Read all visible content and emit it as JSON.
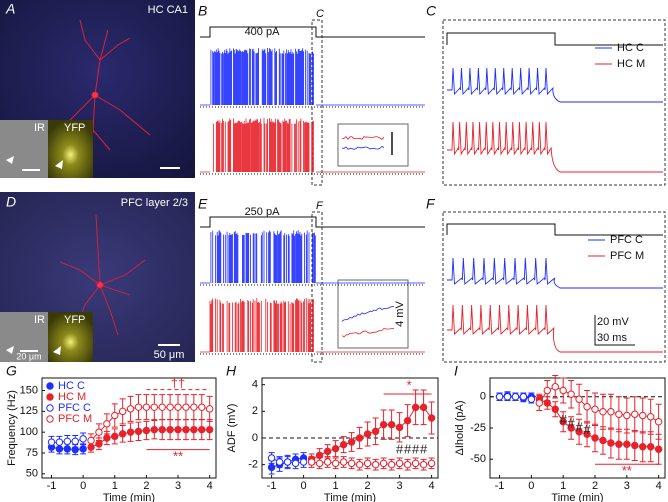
{
  "panels": {
    "A": {
      "label": "A",
      "title": "HC CA1",
      "insets": [
        "IR",
        "YFP"
      ]
    },
    "B": {
      "label": "B",
      "current": "400 pA",
      "box": "C"
    },
    "C": {
      "label": "C",
      "legend": [
        "HC C",
        "HC M"
      ]
    },
    "D": {
      "label": "D",
      "title": "PFC layer 2/3",
      "insets": [
        "IR",
        "YFP"
      ],
      "inset_scale": "20 μm",
      "scale": "50 μm"
    },
    "E": {
      "label": "E",
      "current": "250 pA",
      "box": "F",
      "scale": "4 mV"
    },
    "F": {
      "label": "F",
      "legend": [
        "PFC C",
        "PFC M"
      ],
      "scale_v": "20 mV",
      "scale_t": "30 ms"
    }
  },
  "chart_data": [
    {
      "type": "scatter",
      "label": "G",
      "ylabel": "Frequency (Hz)",
      "xlabel": "Time (min)",
      "xlim": [
        -1.3,
        4.2
      ],
      "xticks": [
        -1,
        0,
        1,
        2,
        3,
        4
      ],
      "ylim": [
        45,
        165
      ],
      "yticks": [
        50,
        75,
        100,
        125,
        150
      ],
      "legend": "upper left",
      "series": [
        {
          "name": "HC C",
          "color": "#1f2eff",
          "marker": "filled",
          "x": [
            -1,
            -0.75,
            -0.5,
            -0.25,
            0
          ],
          "values": [
            82,
            80,
            80,
            79,
            80
          ],
          "errors": [
            6,
            6,
            6,
            6,
            6
          ]
        },
        {
          "name": "HC M",
          "color": "#e8212b",
          "marker": "filled",
          "x": [
            0.25,
            0.5,
            0.75,
            1,
            1.25,
            1.5,
            1.75,
            2,
            2.25,
            2.5,
            2.75,
            3,
            3.25,
            3.5,
            3.75,
            4
          ],
          "values": [
            82,
            86,
            93,
            95,
            98,
            100,
            101,
            102,
            103,
            103,
            103,
            103,
            103,
            103,
            103,
            103
          ],
          "errors": [
            6,
            7,
            8,
            9,
            10,
            11,
            11,
            11,
            11,
            12,
            12,
            12,
            12,
            12,
            12,
            12
          ]
        },
        {
          "name": "PFC C",
          "color": "#1f2eff",
          "marker": "open",
          "x": [
            -1,
            -0.75,
            -0.5,
            -0.25,
            0
          ],
          "values": [
            88,
            88,
            89,
            89,
            92
          ],
          "errors": [
            7,
            7,
            7,
            7,
            7
          ]
        },
        {
          "name": "PFC M",
          "color": "#e8212b",
          "marker": "open",
          "x": [
            0.25,
            0.5,
            0.75,
            1,
            1.25,
            1.5,
            1.75,
            2,
            2.25,
            2.5,
            2.75,
            3,
            3.25,
            3.5,
            3.75,
            4
          ],
          "values": [
            90,
            100,
            110,
            120,
            125,
            128,
            130,
            130,
            130,
            130,
            130,
            130,
            130,
            130,
            130,
            128
          ],
          "errors": [
            8,
            10,
            12,
            14,
            15,
            15,
            15,
            15,
            15,
            15,
            15,
            15,
            15,
            15,
            15,
            15
          ]
        }
      ],
      "annotations": [
        {
          "text": "††",
          "color": "#e8212b"
        },
        {
          "text": "**",
          "color": "#e8212b"
        }
      ]
    },
    {
      "type": "scatter",
      "label": "H",
      "ylabel": "ADF (mV)",
      "xlabel": "Time (min)",
      "xlim": [
        -1.3,
        4.2
      ],
      "xticks": [
        -1,
        0,
        1,
        2,
        3,
        4
      ],
      "ylim": [
        -3,
        4.5
      ],
      "yticks": [
        -2,
        0,
        2,
        4
      ],
      "zero_line": true,
      "series": [
        {
          "color": "#1f2eff",
          "marker": "filled",
          "x": [
            -1,
            -0.75,
            -0.5,
            -0.25,
            0
          ],
          "values": [
            -2.2,
            -2,
            -1.8,
            -1.6,
            -1.5
          ],
          "errors": [
            0.5,
            0.5,
            0.5,
            0.4,
            0.4
          ]
        },
        {
          "color": "#e8212b",
          "marker": "filled",
          "x": [
            0.25,
            0.5,
            0.75,
            1,
            1.25,
            1.5,
            1.75,
            2,
            2.25,
            2.5,
            2.75,
            3,
            3.25,
            3.5,
            3.75,
            4
          ],
          "values": [
            -1.6,
            -1.3,
            -1,
            -0.8,
            -0.5,
            -0.3,
            0,
            0.3,
            0.5,
            1,
            1,
            0.8,
            1.3,
            2.3,
            2.3,
            1.5
          ],
          "errors": [
            0.4,
            0.5,
            0.5,
            0.6,
            0.6,
            0.7,
            0.8,
            0.9,
            1,
            1.1,
            1.1,
            1.1,
            1.2,
            1.3,
            1.3,
            1.2
          ]
        },
        {
          "color": "#1f2eff",
          "marker": "open",
          "x": [
            -1,
            -0.75,
            -0.5,
            -0.25,
            0
          ],
          "values": [
            -1.5,
            -1.8,
            -1.8,
            -1.9,
            -1.8
          ],
          "errors": [
            0.4,
            0.4,
            0.4,
            0.4,
            0.4
          ]
        },
        {
          "color": "#e8212b",
          "marker": "open",
          "x": [
            0.25,
            0.5,
            0.75,
            1,
            1.25,
            1.5,
            1.75,
            2,
            2.25,
            2.5,
            2.75,
            3,
            3.25,
            3.5,
            3.75,
            4
          ],
          "values": [
            -1.8,
            -1.9,
            -1.8,
            -1.9,
            -1.8,
            -1.9,
            -2,
            -1.9,
            -2,
            -1.9,
            -2,
            -1.9,
            -2,
            -1.9,
            -2,
            -1.9
          ],
          "errors": [
            0.4,
            0.4,
            0.4,
            0.4,
            0.4,
            0.4,
            0.4,
            0.4,
            0.4,
            0.4,
            0.4,
            0.4,
            0.4,
            0.4,
            0.4,
            0.4
          ]
        }
      ],
      "annotations": [
        {
          "text": "*",
          "color": "#e8212b"
        },
        {
          "text": "#",
          "color": "#222222"
        },
        {
          "text": "#",
          "color": "#222222"
        },
        {
          "text": "#",
          "color": "#222222"
        },
        {
          "text": "#",
          "color": "#222222"
        }
      ]
    },
    {
      "type": "scatter",
      "label": "I",
      "ylabel": "ΔIhold (pA)",
      "xlabel": "Time (min)",
      "xlim": [
        -1.3,
        4.2
      ],
      "xticks": [
        -1,
        0,
        1,
        2,
        3,
        4
      ],
      "ylim": [
        -65,
        15
      ],
      "yticks": [
        -50,
        -25,
        0
      ],
      "zero_line": true,
      "series": [
        {
          "color": "#1f2eff",
          "marker": "filled",
          "x": [
            -1,
            -0.75,
            -0.5,
            -0.25,
            0
          ],
          "values": [
            0,
            1,
            0,
            -1,
            0
          ],
          "errors": [
            3,
            3,
            3,
            3,
            3
          ]
        },
        {
          "color": "#e8212b",
          "marker": "filled",
          "x": [
            0.25,
            0.5,
            0.75,
            1,
            1.25,
            1.5,
            1.75,
            2,
            2.25,
            2.5,
            2.75,
            3,
            3.25,
            3.5,
            3.75,
            4
          ],
          "values": [
            -2,
            -5,
            -10,
            -20,
            -25,
            -28,
            -30,
            -33,
            -35,
            -37,
            -38,
            -38,
            -39,
            -40,
            -40,
            -42
          ],
          "errors": [
            4,
            5,
            6,
            8,
            9,
            10,
            10,
            11,
            11,
            12,
            12,
            12,
            12,
            12,
            12,
            12
          ]
        },
        {
          "color": "#1f2eff",
          "marker": "open",
          "x": [
            -1,
            -0.75,
            -0.5,
            -0.25,
            0
          ],
          "values": [
            0,
            0,
            0,
            0,
            -2
          ],
          "errors": [
            3,
            3,
            3,
            3,
            3
          ]
        },
        {
          "color": "#e8212b",
          "marker": "open",
          "x": [
            0.25,
            0.5,
            0.75,
            1,
            1.25,
            1.5,
            1.75,
            2,
            2.25,
            2.5,
            2.75,
            3,
            3.25,
            3.5,
            3.75,
            4
          ],
          "values": [
            -5,
            5,
            8,
            5,
            2,
            -2,
            -8,
            -10,
            -12,
            -12,
            -14,
            -15,
            -14,
            -15,
            -16,
            -20
          ],
          "errors": [
            6,
            8,
            9,
            10,
            11,
            12,
            13,
            13,
            14,
            14,
            14,
            14,
            14,
            14,
            14,
            14
          ]
        }
      ],
      "annotations": [
        {
          "text": "#",
          "color": "#222222"
        },
        {
          "text": "#",
          "color": "#222222"
        },
        {
          "text": "#",
          "color": "#222222"
        },
        {
          "text": "#",
          "color": "#222222"
        },
        {
          "text": "**",
          "color": "#e8212b"
        }
      ]
    }
  ]
}
